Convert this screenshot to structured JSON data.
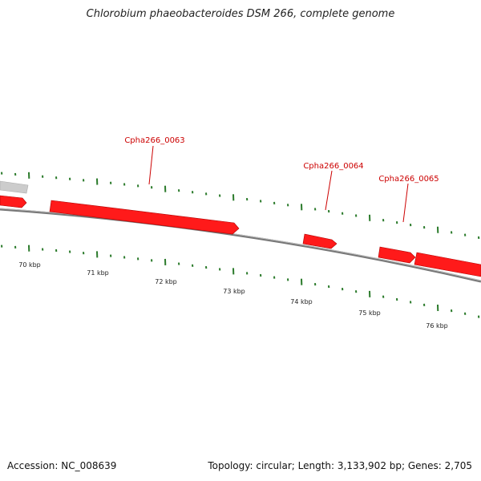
{
  "header": {
    "title": "Chlorobium phaeobacteroides DSM 266, complete genome"
  },
  "footer": {
    "accession": "Accession: NC_008639",
    "summary": "Topology: circular; Length: 3,133,902 bp; Genes: 2,705"
  },
  "colors": {
    "gene_fill": "#ff1a1a",
    "gene_shade": "#a00000",
    "other_feature": "#cccccc",
    "backbone": "#777777",
    "ticks": "#2a7a2a",
    "gene_label": "#cc0000"
  },
  "chart_data": {
    "type": "genome-map",
    "x_unit": "kbp",
    "tick_labels": [
      "70 kbp",
      "71 kbp",
      "72 kbp",
      "73 kbp",
      "74 kbp",
      "75 kbp",
      "76 kbp"
    ],
    "tick_positions_kbp": [
      70,
      71,
      72,
      73,
      74,
      75,
      76
    ],
    "genes": [
      {
        "name": "Cpha266_0063",
        "labeled": true,
        "strand": "+"
      },
      {
        "name": "Cpha266_0064",
        "labeled": true,
        "strand": "+"
      },
      {
        "name": "Cpha266_0065",
        "labeled": true,
        "strand": "+"
      }
    ]
  }
}
